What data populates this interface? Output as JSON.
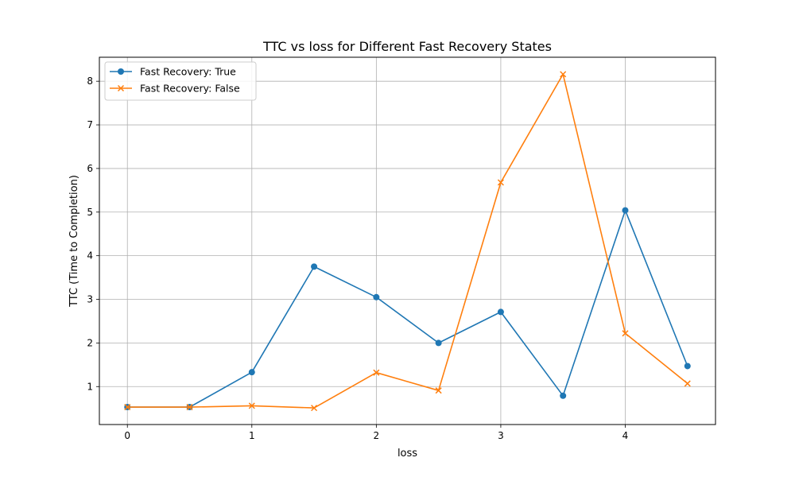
{
  "chart_data": {
    "type": "line",
    "title": "TTC vs loss for Different Fast Recovery States",
    "xlabel": "loss",
    "ylabel": "TTC (Time to Completion)",
    "xlim": [
      -0.225,
      4.725
    ],
    "ylim": [
      0.13,
      8.55
    ],
    "xticks": [
      0,
      1,
      2,
      3,
      4
    ],
    "yticks": [
      1,
      2,
      3,
      4,
      5,
      6,
      7,
      8
    ],
    "grid": true,
    "legend_position": "top-left",
    "x": [
      0,
      0.5,
      1,
      1.5,
      2,
      2.5,
      3,
      3.5,
      4,
      4.5
    ],
    "series": [
      {
        "name": "Fast Recovery: True",
        "color": "#1f77b4",
        "marker": "circle",
        "values": [
          0.53,
          0.53,
          1.33,
          3.75,
          3.05,
          2.0,
          2.71,
          0.79,
          5.04,
          1.47
        ]
      },
      {
        "name": "Fast Recovery: False",
        "color": "#ff7f0e",
        "marker": "x",
        "values": [
          0.53,
          0.53,
          0.56,
          0.51,
          1.32,
          0.91,
          5.68,
          8.16,
          2.22,
          1.07
        ]
      }
    ]
  }
}
